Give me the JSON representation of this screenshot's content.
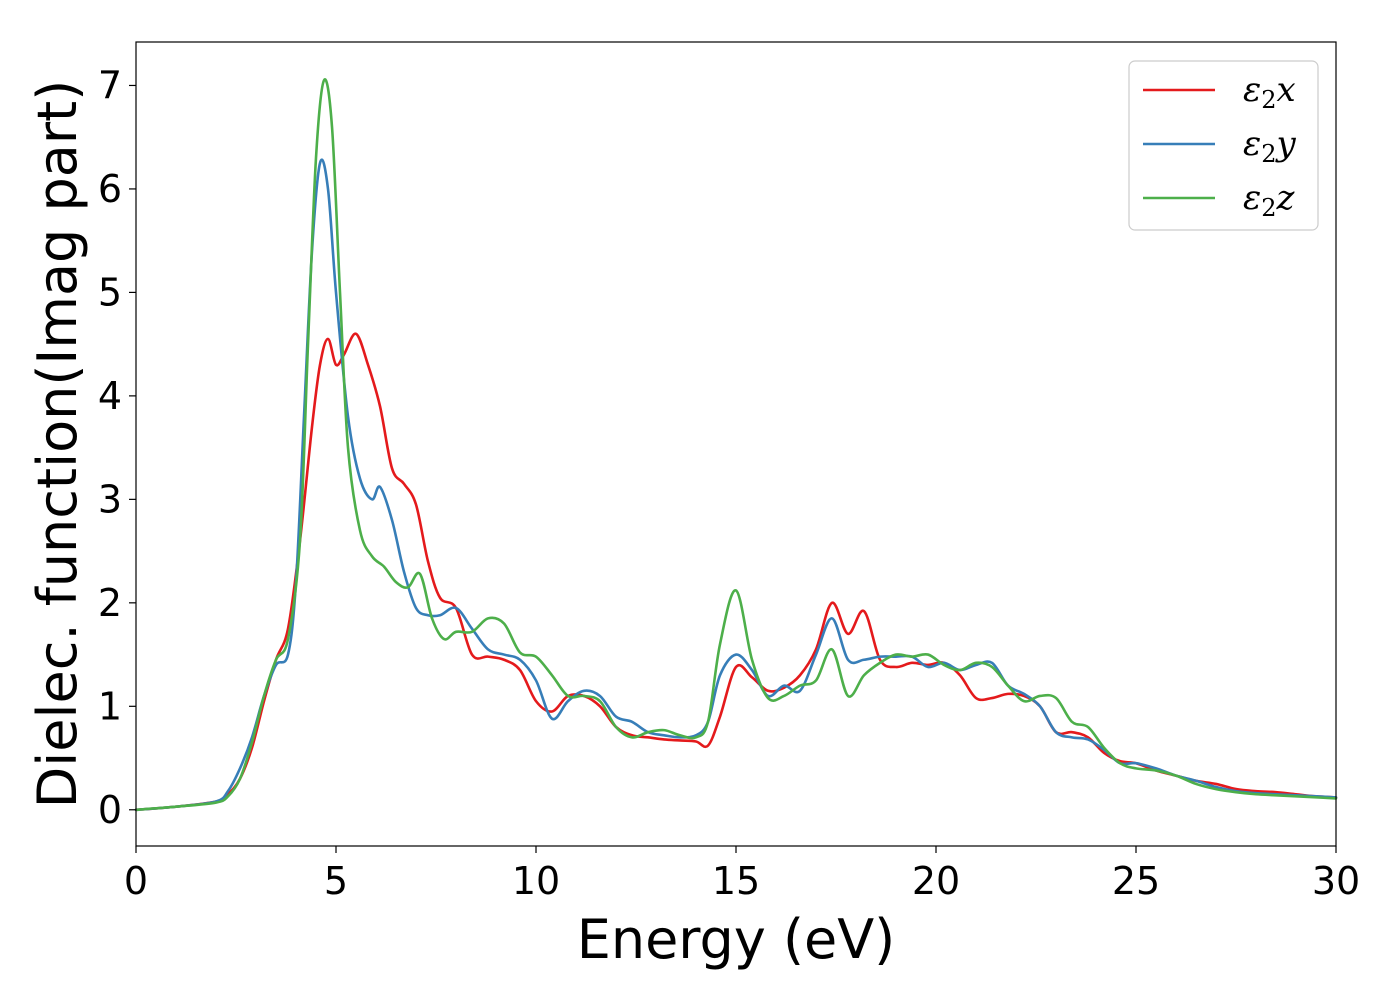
{
  "chart_data": {
    "type": "line",
    "xlabel": "Energy (eV)",
    "ylabel": "Dielec. function(Imag part)",
    "xlim": [
      0,
      30
    ],
    "ylim": [
      -0.35,
      7.42
    ],
    "xticks": [
      0,
      5,
      10,
      15,
      20,
      25,
      30
    ],
    "yticks": [
      0,
      1,
      2,
      3,
      4,
      5,
      6,
      7
    ],
    "grid": false,
    "legend_position": "top-right",
    "series": [
      {
        "name": "ε2x",
        "legend": {
          "base": "ε",
          "sub": "2",
          "axis": "x"
        },
        "color": "#e41a1c",
        "x": [
          0,
          1,
          2,
          2.3,
          2.6,
          2.9,
          3.2,
          3.5,
          3.8,
          4.1,
          4.4,
          4.6,
          4.8,
          5.0,
          5.2,
          5.5,
          5.8,
          6.1,
          6.4,
          6.7,
          7.0,
          7.3,
          7.6,
          8.0,
          8.4,
          8.8,
          9.2,
          9.6,
          10.0,
          10.4,
          10.8,
          11.2,
          11.6,
          12.0,
          12.4,
          12.8,
          13.2,
          13.6,
          14.0,
          14.3,
          14.6,
          15.0,
          15.4,
          15.8,
          16.2,
          16.6,
          17.0,
          17.4,
          17.8,
          18.2,
          18.6,
          19.0,
          19.4,
          19.8,
          20.2,
          20.6,
          21.0,
          21.4,
          21.8,
          22.2,
          22.6,
          23.0,
          23.4,
          23.8,
          24.2,
          24.6,
          25.0,
          25.5,
          26.0,
          26.5,
          27.0,
          27.5,
          28.0,
          28.5,
          29.0,
          29.5,
          30.0
        ],
        "y": [
          0.0,
          0.03,
          0.08,
          0.15,
          0.3,
          0.6,
          1.05,
          1.45,
          1.75,
          2.6,
          3.7,
          4.3,
          4.55,
          4.3,
          4.4,
          4.6,
          4.3,
          3.9,
          3.3,
          3.15,
          2.95,
          2.4,
          2.05,
          1.95,
          1.5,
          1.48,
          1.45,
          1.35,
          1.05,
          0.95,
          1.1,
          1.1,
          1.0,
          0.8,
          0.72,
          0.7,
          0.68,
          0.67,
          0.66,
          0.62,
          0.9,
          1.38,
          1.28,
          1.15,
          1.18,
          1.3,
          1.55,
          2.0,
          1.7,
          1.92,
          1.45,
          1.38,
          1.42,
          1.4,
          1.42,
          1.3,
          1.08,
          1.08,
          1.12,
          1.1,
          1.0,
          0.75,
          0.75,
          0.7,
          0.55,
          0.47,
          0.45,
          0.38,
          0.33,
          0.28,
          0.25,
          0.2,
          0.18,
          0.17,
          0.15,
          0.13,
          0.12
        ]
      },
      {
        "name": "ε2y",
        "legend": {
          "base": "ε",
          "sub": "2",
          "axis": "y"
        },
        "color": "#377eb8",
        "x": [
          0,
          1,
          2,
          2.3,
          2.6,
          2.9,
          3.2,
          3.5,
          3.8,
          4.0,
          4.2,
          4.4,
          4.6,
          4.8,
          5.0,
          5.3,
          5.6,
          5.9,
          6.1,
          6.4,
          6.7,
          7.0,
          7.3,
          7.6,
          8.0,
          8.4,
          8.8,
          9.2,
          9.6,
          10.0,
          10.4,
          10.8,
          11.2,
          11.6,
          12.0,
          12.4,
          12.8,
          13.2,
          13.6,
          14.0,
          14.3,
          14.6,
          15.0,
          15.4,
          15.8,
          16.2,
          16.6,
          17.0,
          17.4,
          17.8,
          18.2,
          18.6,
          19.0,
          19.4,
          19.8,
          20.2,
          20.6,
          21.0,
          21.4,
          21.8,
          22.2,
          22.6,
          23.0,
          23.4,
          23.8,
          24.2,
          24.6,
          25.0,
          25.5,
          26.0,
          26.5,
          27.0,
          27.5,
          28.0,
          28.5,
          29.0,
          29.5,
          30.0
        ],
        "y": [
          0.0,
          0.03,
          0.08,
          0.18,
          0.4,
          0.7,
          1.1,
          1.4,
          1.5,
          2.2,
          3.8,
          5.4,
          6.25,
          6.0,
          5.0,
          3.8,
          3.2,
          3.0,
          3.12,
          2.8,
          2.3,
          1.95,
          1.88,
          1.88,
          1.95,
          1.75,
          1.55,
          1.5,
          1.45,
          1.25,
          0.88,
          1.05,
          1.15,
          1.1,
          0.9,
          0.85,
          0.75,
          0.72,
          0.7,
          0.72,
          0.85,
          1.3,
          1.5,
          1.35,
          1.1,
          1.2,
          1.15,
          1.5,
          1.85,
          1.45,
          1.45,
          1.48,
          1.48,
          1.48,
          1.38,
          1.42,
          1.35,
          1.4,
          1.42,
          1.2,
          1.12,
          1.0,
          0.75,
          0.7,
          0.68,
          0.58,
          0.45,
          0.45,
          0.4,
          0.33,
          0.28,
          0.22,
          0.18,
          0.16,
          0.15,
          0.14,
          0.13,
          0.12
        ]
      },
      {
        "name": "ε2z",
        "legend": {
          "base": "ε",
          "sub": "2",
          "axis": "z"
        },
        "color": "#4daf4a",
        "x": [
          0,
          1,
          2,
          2.3,
          2.6,
          2.9,
          3.2,
          3.5,
          3.8,
          4.1,
          4.3,
          4.5,
          4.7,
          4.9,
          5.1,
          5.3,
          5.6,
          5.9,
          6.2,
          6.5,
          6.8,
          7.1,
          7.4,
          7.7,
          8.0,
          8.4,
          8.8,
          9.2,
          9.6,
          10.0,
          10.4,
          10.8,
          11.2,
          11.6,
          12.0,
          12.4,
          12.8,
          13.2,
          13.6,
          14.0,
          14.3,
          14.6,
          15.0,
          15.4,
          15.8,
          16.2,
          16.6,
          17.0,
          17.4,
          17.8,
          18.2,
          18.6,
          19.0,
          19.4,
          19.8,
          20.2,
          20.6,
          21.0,
          21.4,
          21.8,
          22.2,
          22.6,
          23.0,
          23.4,
          23.8,
          24.2,
          24.6,
          25.0,
          25.5,
          26.0,
          26.5,
          27.0,
          27.5,
          28.0,
          28.5,
          29.0,
          29.5,
          30.0
        ],
        "y": [
          0.0,
          0.03,
          0.07,
          0.13,
          0.3,
          0.65,
          1.1,
          1.45,
          1.65,
          2.6,
          4.5,
          6.3,
          7.05,
          6.6,
          5.0,
          3.5,
          2.7,
          2.45,
          2.35,
          2.2,
          2.15,
          2.28,
          1.85,
          1.65,
          1.72,
          1.72,
          1.85,
          1.8,
          1.52,
          1.48,
          1.3,
          1.1,
          1.1,
          1.05,
          0.8,
          0.7,
          0.75,
          0.77,
          0.72,
          0.7,
          0.85,
          1.6,
          2.12,
          1.45,
          1.08,
          1.1,
          1.2,
          1.25,
          1.55,
          1.1,
          1.3,
          1.42,
          1.5,
          1.48,
          1.5,
          1.4,
          1.35,
          1.42,
          1.38,
          1.2,
          1.05,
          1.1,
          1.08,
          0.85,
          0.8,
          0.6,
          0.45,
          0.4,
          0.38,
          0.33,
          0.25,
          0.2,
          0.17,
          0.15,
          0.14,
          0.13,
          0.12,
          0.11
        ]
      }
    ]
  }
}
